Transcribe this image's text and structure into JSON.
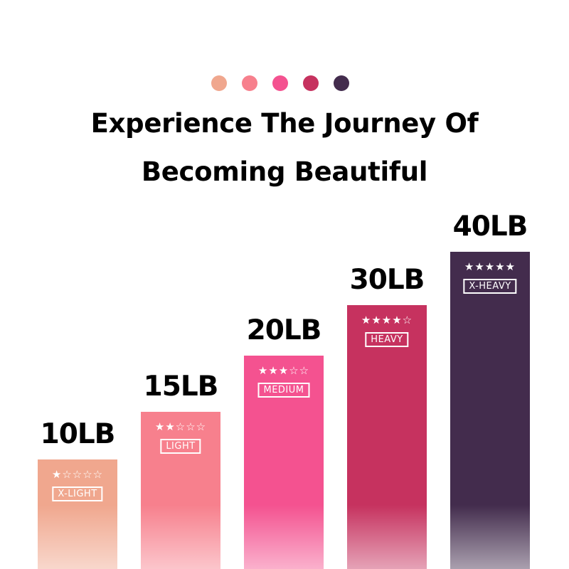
{
  "palette": [
    "#F0A78E",
    "#F7808D",
    "#F45290",
    "#C6325F",
    "#432C4D"
  ],
  "title_lines": [
    "Experience The Journey Of",
    "Becoming Beautiful"
  ],
  "bands": [
    {
      "weight": "10LB",
      "level": "X-LIGHT",
      "stars": 1,
      "max_stars": 5,
      "color": "#F0A78E"
    },
    {
      "weight": "15LB",
      "level": "LIGHT",
      "stars": 2,
      "max_stars": 5,
      "color": "#F7808D"
    },
    {
      "weight": "20LB",
      "level": "MEDIUM",
      "stars": 3,
      "max_stars": 5,
      "color": "#F45290"
    },
    {
      "weight": "30LB",
      "level": "HEAVY",
      "stars": 4,
      "max_stars": 5,
      "color": "#C6325F"
    },
    {
      "weight": "40LB",
      "level": "X-HEAVY",
      "stars": 5,
      "max_stars": 5,
      "color": "#432C4D"
    }
  ]
}
